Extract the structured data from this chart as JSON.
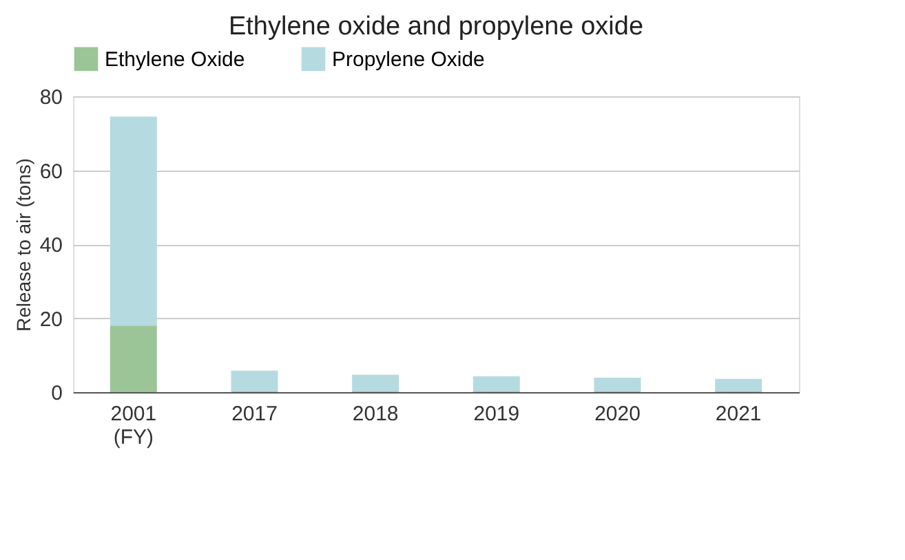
{
  "chart_data": {
    "type": "bar",
    "title": "Ethylene oxide and propylene oxide",
    "ylabel": "Release to air (tons)",
    "categories": [
      "2001\n(FY)",
      "2017",
      "2018",
      "2019",
      "2020",
      "2021"
    ],
    "stacked": true,
    "series": [
      {
        "name": "Ethylene Oxide",
        "color": "#9bc596",
        "values": [
          18,
          0.2,
          0.2,
          0.2,
          0.2,
          0.2
        ]
      },
      {
        "name": "Propylene Oxide",
        "color": "#b5dbe0",
        "values": [
          56.5,
          5.6,
          4.5,
          4.1,
          3.7,
          3.4
        ]
      }
    ],
    "ylim": [
      0,
      80
    ],
    "yticks": [
      0,
      20,
      40,
      60,
      80
    ],
    "grid": "y",
    "legend": "top"
  }
}
